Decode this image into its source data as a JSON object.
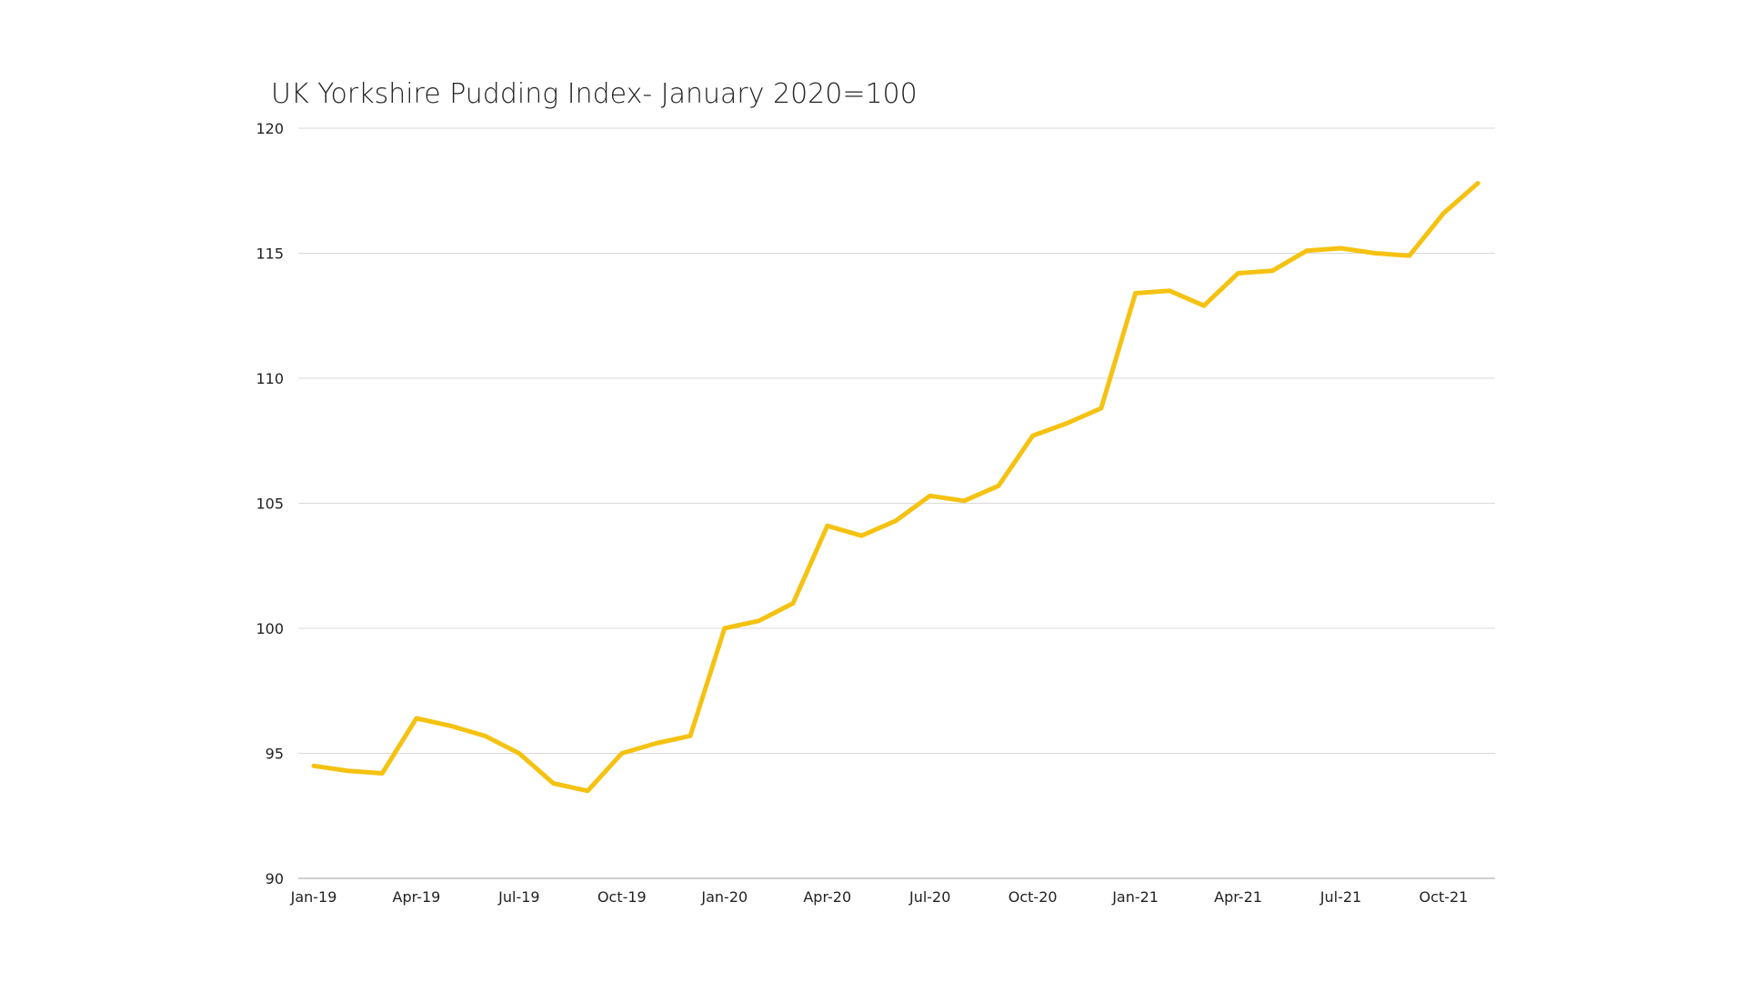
{
  "chart_data": {
    "type": "line",
    "title": "UK Yorkshire Pudding Index- January 2020=100",
    "xlabel": "",
    "ylabel": "",
    "ylim": [
      90,
      120
    ],
    "yticks": [
      90,
      95,
      100,
      105,
      110,
      115,
      120
    ],
    "grid": true,
    "legend": "none",
    "x": [
      "Jan-19",
      "Feb-19",
      "Mar-19",
      "Apr-19",
      "May-19",
      "Jun-19",
      "Jul-19",
      "Aug-19",
      "Sep-19",
      "Oct-19",
      "Nov-19",
      "Dec-19",
      "Jan-20",
      "Feb-20",
      "Mar-20",
      "Apr-20",
      "May-20",
      "Jun-20",
      "Jul-20",
      "Aug-20",
      "Sep-20",
      "Oct-20",
      "Nov-20",
      "Dec-20",
      "Jan-21",
      "Feb-21",
      "Mar-21",
      "Apr-21",
      "May-21",
      "Jun-21",
      "Jul-21",
      "Aug-21",
      "Sep-21",
      "Oct-21",
      "Nov-21"
    ],
    "x_tick_labels": [
      "Jan-19",
      "Apr-19",
      "Jul-19",
      "Oct-19",
      "Jan-20",
      "Apr-20",
      "Jul-20",
      "Oct-20",
      "Jan-21",
      "Apr-21",
      "Jul-21",
      "Oct-21"
    ],
    "series": [
      {
        "color": "#F5C211",
        "values": [
          94.5,
          94.3,
          94.2,
          96.4,
          96.1,
          95.7,
          95.0,
          93.8,
          93.5,
          95.0,
          95.4,
          95.7,
          100.0,
          100.3,
          101.0,
          104.1,
          103.7,
          104.3,
          105.3,
          105.1,
          105.7,
          107.7,
          108.2,
          108.8,
          113.4,
          113.5,
          112.9,
          114.2,
          114.3,
          115.1,
          115.2,
          115.0,
          114.9,
          116.6,
          117.8
        ]
      }
    ]
  }
}
